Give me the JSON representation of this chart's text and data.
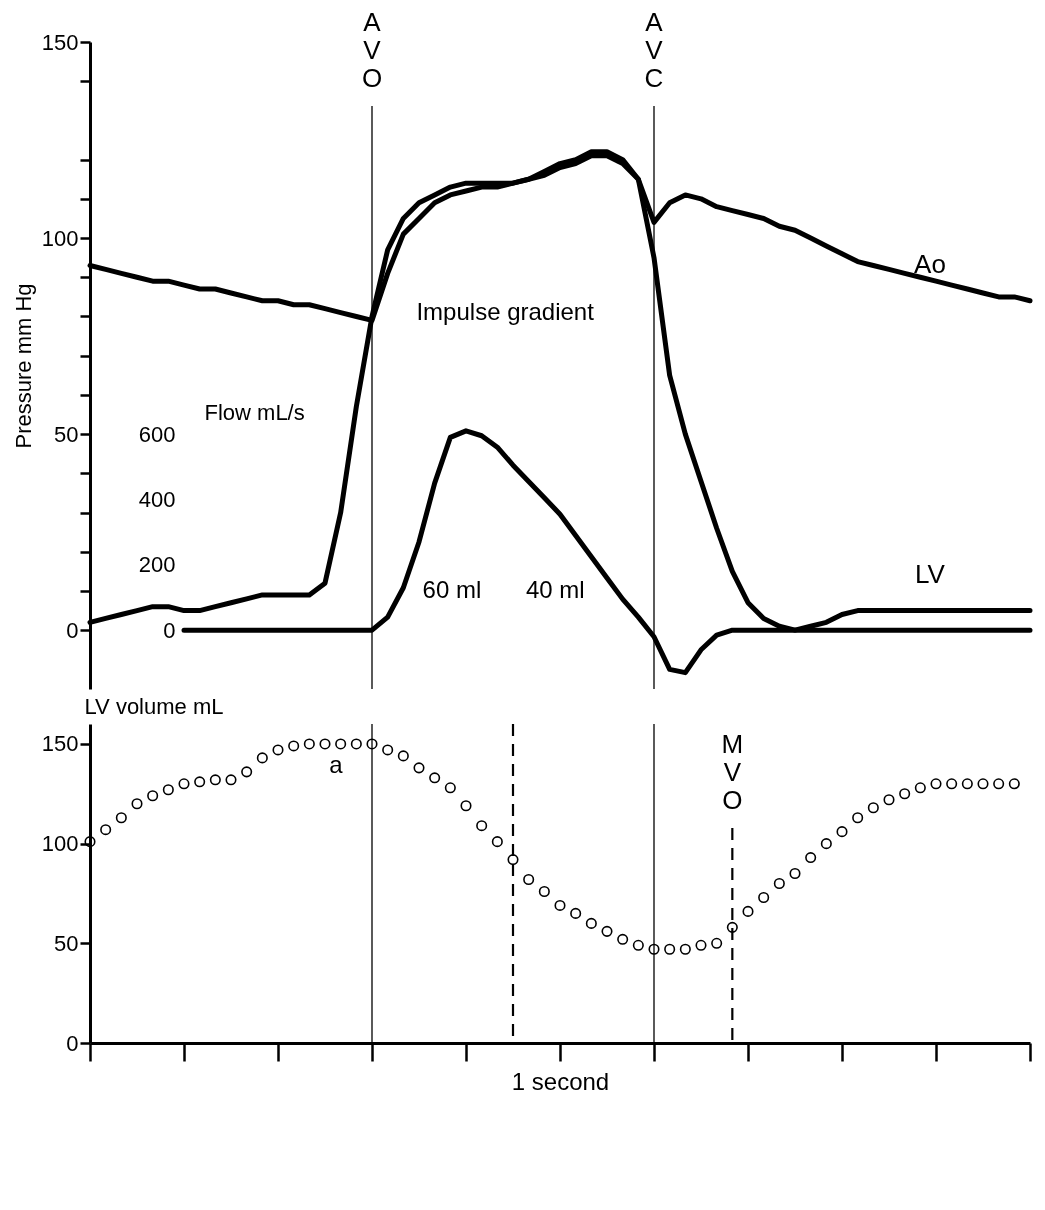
{
  "chart_data": [
    {
      "type": "line",
      "ylabel": "Pressure mm Hg",
      "y2label": "Flow mL/s",
      "ylim": [
        -15,
        150
      ],
      "categories": [
        null,
        null,
        null,
        null,
        null,
        null,
        null,
        null,
        null,
        null,
        null,
        null,
        null,
        null,
        null,
        null,
        null,
        null,
        null,
        null,
        null,
        null,
        null,
        null,
        null,
        null,
        null,
        null,
        null,
        null,
        null,
        null,
        null,
        null,
        null,
        null,
        null,
        null,
        null,
        null,
        null,
        null,
        null,
        null,
        null,
        null,
        null,
        null,
        null,
        null,
        null,
        null,
        null,
        null,
        null,
        null,
        null,
        null,
        null,
        null,
        null
      ],
      "yticks": [
        0,
        {
          "value": 10,
          "label": null
        },
        {
          "value": 20,
          "label": null
        },
        {
          "value": 30,
          "label": null
        },
        {
          "value": 40,
          "label": null
        },
        50,
        {
          "value": 60,
          "label": null
        },
        {
          "value": 70,
          "label": null
        },
        {
          "value": 80,
          "label": null
        },
        {
          "value": 90,
          "label": null
        },
        100,
        {
          "value": 110,
          "label": null
        },
        {
          "value": 120,
          "label": null
        },
        {
          "value": 140,
          "label": null
        },
        150
      ],
      "y2lim": [
        -180,
        1800
      ],
      "y2ticks": [
        0,
        200,
        400,
        600
      ],
      "tick_labels": "y",
      "series": [
        {
          "name": "Ao",
          "color": "#000000",
          "values": [
            93,
            92,
            91,
            90,
            89,
            89,
            88,
            87,
            87,
            86,
            85,
            84,
            84,
            83,
            83,
            82,
            81,
            80,
            79,
            91,
            101,
            105,
            109,
            111,
            112,
            113,
            113,
            114,
            115,
            116,
            118,
            119,
            121,
            121,
            119,
            115,
            104,
            109,
            111,
            110,
            108,
            107,
            106,
            105,
            103,
            102,
            100,
            98,
            96,
            94,
            93,
            92,
            91,
            90,
            89,
            88,
            87,
            86,
            85,
            85,
            84
          ]
        },
        {
          "name": "LV",
          "color": "#000000",
          "values": [
            2,
            3,
            4,
            5,
            6,
            6,
            5,
            5,
            6,
            7,
            8,
            9,
            9,
            9,
            9,
            12,
            30,
            57,
            80,
            97,
            105,
            109,
            111,
            113,
            114,
            114,
            114,
            114,
            115,
            117,
            119,
            120,
            122,
            122,
            120,
            115,
            95,
            65,
            50,
            38,
            26,
            15,
            7,
            3,
            1,
            0,
            1,
            2,
            4,
            5,
            5,
            5,
            5,
            5,
            5,
            5,
            5,
            5,
            5,
            5,
            5
          ]
        },
        {
          "color": "#000000",
          "axis": "y2",
          "values": [
            null,
            null,
            null,
            null,
            null,
            null,
            0,
            0,
            0,
            0,
            0,
            0,
            0,
            0,
            0,
            0,
            0,
            0,
            0,
            40,
            130,
            270,
            450,
            590,
            610,
            595,
            560,
            505,
            455,
            405,
            355,
            290,
            225,
            160,
            95,
            40,
            -20,
            -120,
            -130,
            -60,
            -15,
            0,
            0,
            0,
            0,
            0,
            0,
            0,
            0,
            0,
            0,
            0,
            0,
            0,
            0,
            0,
            0,
            0,
            0,
            0,
            0
          ]
        }
      ],
      "annotations": [
        "AVO",
        "AVC",
        "Impulse gradient",
        "60 ml",
        "40 ml"
      ]
    },
    {
      "type": "scatter",
      "ylabel": "LV volume mL",
      "xlabel": "1 second",
      "ylim": [
        0,
        160
      ],
      "categories": [
        null,
        null,
        null,
        null,
        null,
        null,
        null,
        null,
        null,
        null,
        null,
        null,
        null,
        null,
        null,
        null,
        null,
        null,
        null,
        null,
        null,
        null,
        null,
        null,
        null,
        null,
        null,
        null,
        null,
        null,
        null,
        null,
        null,
        null,
        null,
        null,
        null,
        null,
        null,
        null,
        null,
        null,
        null,
        null,
        null,
        null,
        null,
        null,
        null,
        null,
        null,
        null,
        null,
        null,
        null,
        null,
        null,
        null,
        null,
        null,
        null
      ],
      "yticks": [
        0,
        50,
        100,
        150
      ],
      "tick_labels": "y",
      "marker": "circle",
      "series": [
        {
          "color": "#000000",
          "values": [
            101,
            107,
            113,
            120,
            124,
            127,
            130,
            131,
            132,
            132,
            136,
            143,
            147,
            149,
            150,
            150,
            150,
            150,
            150,
            147,
            144,
            138,
            133,
            128,
            119,
            109,
            101,
            92,
            82,
            76,
            69,
            65,
            60,
            56,
            52,
            49,
            47,
            47,
            47,
            49,
            50,
            58,
            66,
            73,
            80,
            85,
            93,
            100,
            106,
            113,
            118,
            122,
            125,
            128,
            130,
            130,
            130,
            130,
            130,
            130,
            null
          ]
        }
      ],
      "annotations": [
        "MVO",
        "a"
      ]
    }
  ]
}
